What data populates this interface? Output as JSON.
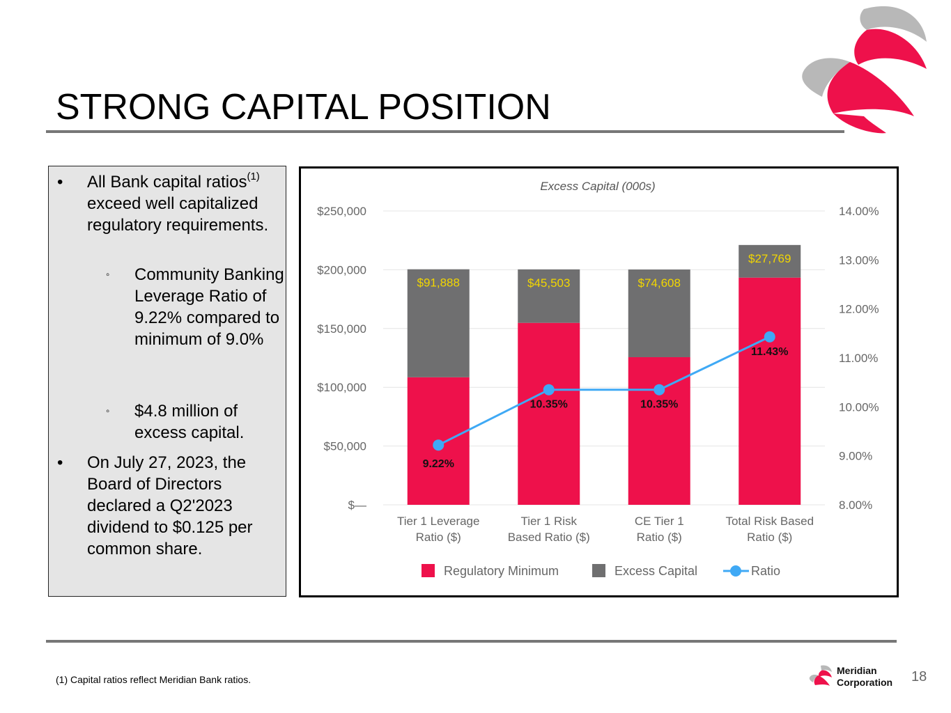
{
  "title": "STRONG CAPITAL POSITION",
  "bullets": {
    "b1_a": "All Bank capital ratios",
    "b1_sup": "(1)",
    "b1_b": " exceed well capitalized regulatory requirements.",
    "sub1": "Community Banking Leverage Ratio of 9.22% compared to minimum of 9.0%",
    "sub2": "$4.8 million of excess capital.",
    "b2": "On July 27, 2023, the Board of Directors declared a Q2'2023 dividend to $0.125 per common share.",
    "bullet_glyph": "•",
    "sub_glyph": "◦"
  },
  "chart_data": {
    "type": "bar",
    "stacked": true,
    "title": "Excess Capital (000s)",
    "categories": [
      [
        "Tier 1 Leverage",
        "Ratio ($)"
      ],
      [
        "Tier 1 Risk",
        "Based Ratio ($)"
      ],
      [
        "CE Tier 1",
        "Ratio ($)"
      ],
      [
        "Total Risk Based",
        "Ratio ($)"
      ]
    ],
    "series": [
      {
        "name": "Regulatory Minimum",
        "axis": "left",
        "color": "#ee114b",
        "values": [
          108500,
          154800,
          125600,
          193300
        ]
      },
      {
        "name": "Excess Capital",
        "axis": "left",
        "color": "#6f6f70",
        "values": [
          91888,
          45503,
          74608,
          27769
        ],
        "labels": [
          "$91,888",
          "$45,503",
          "$74,608",
          "$27,769"
        ],
        "label_color": "#f2d600"
      },
      {
        "name": "Ratio",
        "type": "line",
        "axis": "right",
        "color": "#3fa9f5",
        "values": [
          9.22,
          10.35,
          10.35,
          11.43
        ],
        "labels": [
          "9.22%",
          "10.35%",
          "10.35%",
          "11.43%"
        ]
      }
    ],
    "y_left": {
      "min": 0,
      "max": 250000,
      "ticks": [
        "$—",
        "$50,000",
        "$100,000",
        "$150,000",
        "$200,000",
        "$250,000"
      ]
    },
    "y_right": {
      "min": 8,
      "max": 14,
      "ticks": [
        "8.00%",
        "9.00%",
        "10.00%",
        "11.00%",
        "12.00%",
        "13.00%",
        "14.00%"
      ]
    },
    "legend_position": "bottom",
    "grid": true
  },
  "footnote": "(1) Capital ratios reflect Meridian Bank ratios.",
  "company": {
    "line1": "Meridian",
    "line2": "Corporation"
  },
  "page_number": "18",
  "colors": {
    "brand_red": "#ee114b",
    "brand_gray": "#a6a6a6",
    "excess_gray": "#6f6f70",
    "ratio_blue": "#3fa9f5"
  }
}
